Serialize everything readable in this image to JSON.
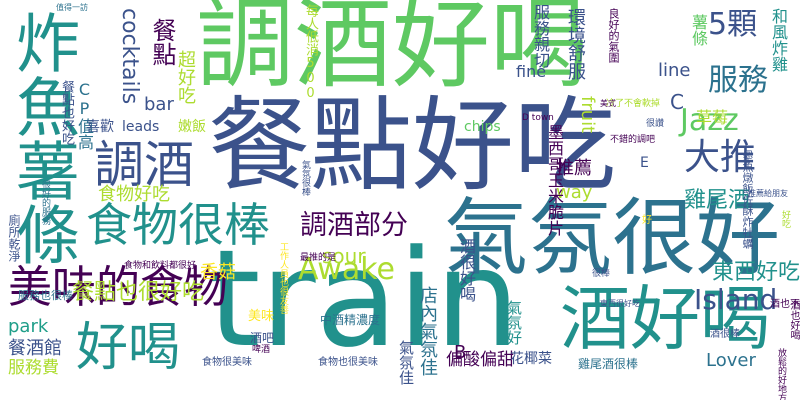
{
  "word_cloud": {
    "background": "#ffffff",
    "palette": [
      "#440154",
      "#3b528b",
      "#2c728e",
      "#21918c",
      "#28ae80",
      "#5ec962",
      "#addc30",
      "#fde725"
    ],
    "words": [
      "train",
      "餐點好吃",
      "調酒好喝",
      "氣氛很好",
      "炸魚薯條",
      "酒好喝",
      "調酒",
      "食物很棒",
      "美味的食物",
      "好喝",
      "大推",
      "Awake",
      "調酒部分",
      "Jazz",
      "Island",
      "服務",
      "5顆",
      "餐點也很好吃",
      "東西好吃",
      "雞尾酒",
      "食物好吃",
      "cocktails",
      "CP值高",
      "餐點",
      "超好吃",
      "fine",
      "line",
      "sour",
      "bar",
      "park",
      "餐酒館",
      "服務費",
      "香菇",
      "推薦",
      "way",
      "fruit",
      "chips",
      "leads",
      "喜歡",
      "嫩飯",
      "酒吧",
      "美味",
      "店內氣氛佳",
      "酒很好喝",
      "偏酸偏甜",
      "花椰菜",
      "氣氛好",
      "氣氛佳",
      "中酒精濃度",
      "Lover",
      "墨西哥玉米脆片",
      "每人低消500",
      "環境舒服",
      "服務親切",
      "草莓",
      "和風炸雞",
      "墨魚燉飯佐酥炸牡蠣",
      "良好的氣圍",
      "餐點也好吃",
      "廁所乾淨",
      "服務也很棒",
      "食物也很美味",
      "食物很美味",
      "雞尾酒很棒",
      "C",
      "B",
      "E",
      "D town",
      "工作人員也很友善",
      "薯條",
      "冷了不會軟掉",
      "不錯的調吧",
      "酒也好喝",
      "酒也不錯",
      "很好的服務",
      "最推的是",
      "食物和飲料都很好",
      "很棒",
      "酒很棒",
      "放鬆的好地方",
      "啤酒",
      "值得一訪",
      "氣氛很棒",
      "好吃",
      "推薦給朋友",
      "東西很好吃",
      "美式",
      "很讚",
      "好"
    ]
  }
}
